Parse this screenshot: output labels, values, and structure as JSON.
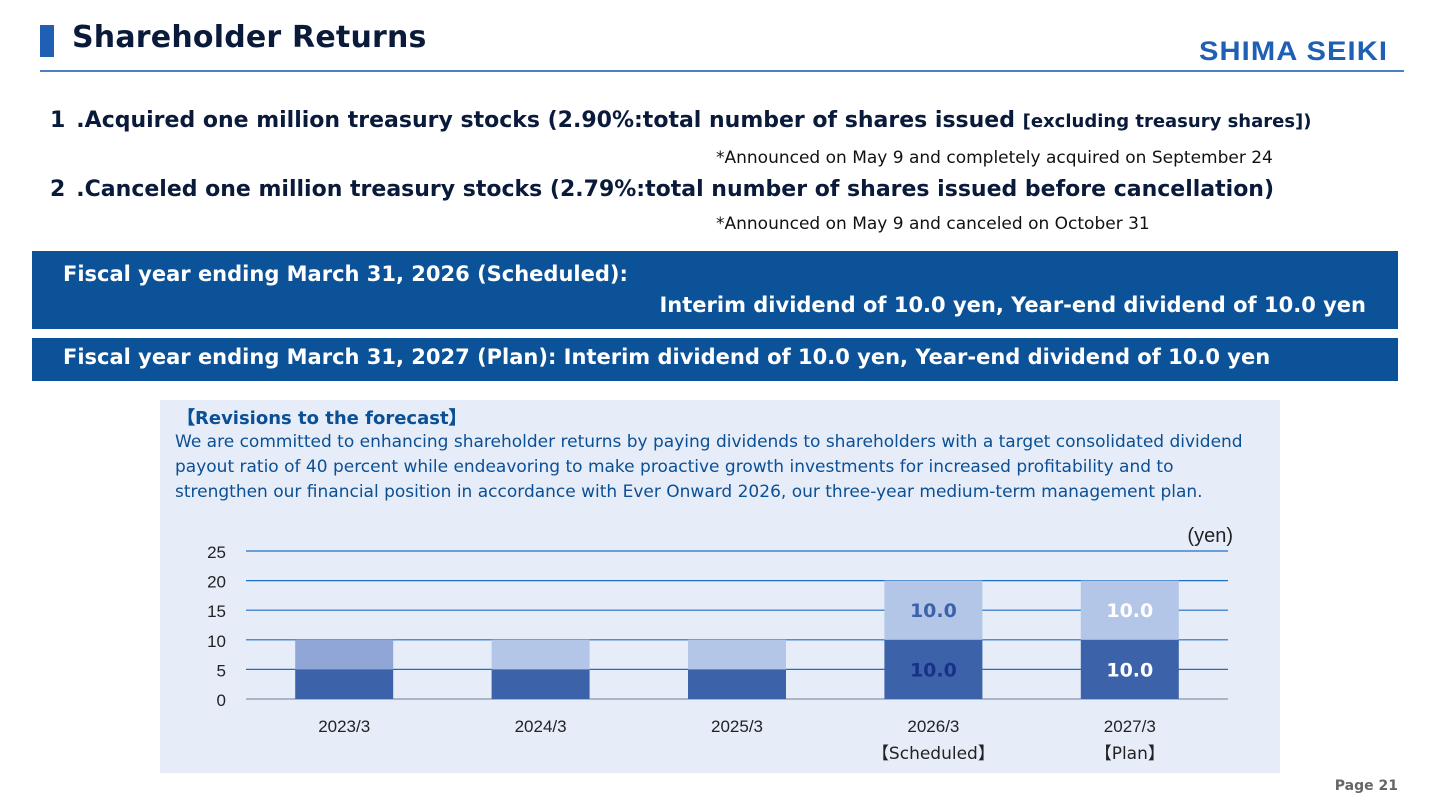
{
  "header": {
    "title": "Shareholder Returns",
    "logo": "SHIMA SEIKI"
  },
  "items": [
    {
      "main": "1 .Acquired one million treasury stocks (2.90%:total number of shares issued ",
      "small": "[excluding treasury shares])"
    },
    {
      "main": "2 .Canceled one million treasury stocks (2.79%:total number of shares issued before cancellation)",
      "small": ""
    }
  ],
  "notes": [
    "*Announced on May 9 and completely acquired on September 24",
    "*Announced on May 9 and canceled on October 31"
  ],
  "banners": {
    "fy2026_line1": "Fiscal year ending March 31, 2026 (Scheduled):",
    "fy2026_line2": "Interim dividend of 10.0 yen, Year-end dividend of 10.0 yen",
    "fy2027": "Fiscal year ending March 31, 2027 (Plan): Interim dividend of 10.0 yen, Year-end dividend of 10.0 yen"
  },
  "revisions": {
    "heading": "【Revisions to the forecast】",
    "body": "We are committed to enhancing shareholder returns by paying dividends to shareholders with a target consolidated dividend payout ratio of 40 percent while endeavoring to make proactive growth investments for increased profitability and to strengthen our financial position in accordance with Ever Onward 2026, our three-year medium-term management plan."
  },
  "chart_data": {
    "type": "bar",
    "stacked": true,
    "unit_label": "(yen)",
    "categories": [
      "2023/3",
      "2024/3",
      "2025/3",
      "2026/3",
      "2027/3"
    ],
    "category_sublabels": [
      "",
      "",
      "",
      "【Scheduled】",
      "【Plan】"
    ],
    "series": [
      {
        "values": [
          5,
          5,
          5,
          10,
          10
        ],
        "labels": [
          "",
          "",
          "",
          "10.0",
          "10.0"
        ],
        "color": "#3c63aa",
        "label_colors": [
          "",
          "",
          "",
          "#1a2f8a",
          "#ffffff"
        ]
      },
      {
        "values": [
          5,
          5,
          5,
          10,
          10
        ],
        "labels": [
          "",
          "",
          "",
          "10.0",
          "10.0"
        ],
        "colors": [
          "#8fa6d6",
          "#b3c6e7",
          "#b3c6e7",
          "#b3c6e7",
          "#b3c6e7"
        ],
        "label_colors": [
          "",
          "",
          "",
          "#3c63aa",
          "#ffffff"
        ]
      }
    ],
    "yticks": [
      0,
      5,
      10,
      15,
      20,
      25
    ],
    "ylim": [
      0,
      25
    ],
    "grid": true,
    "gridline_color": "#1f6fc4"
  },
  "footer": {
    "page": "Page 21"
  }
}
